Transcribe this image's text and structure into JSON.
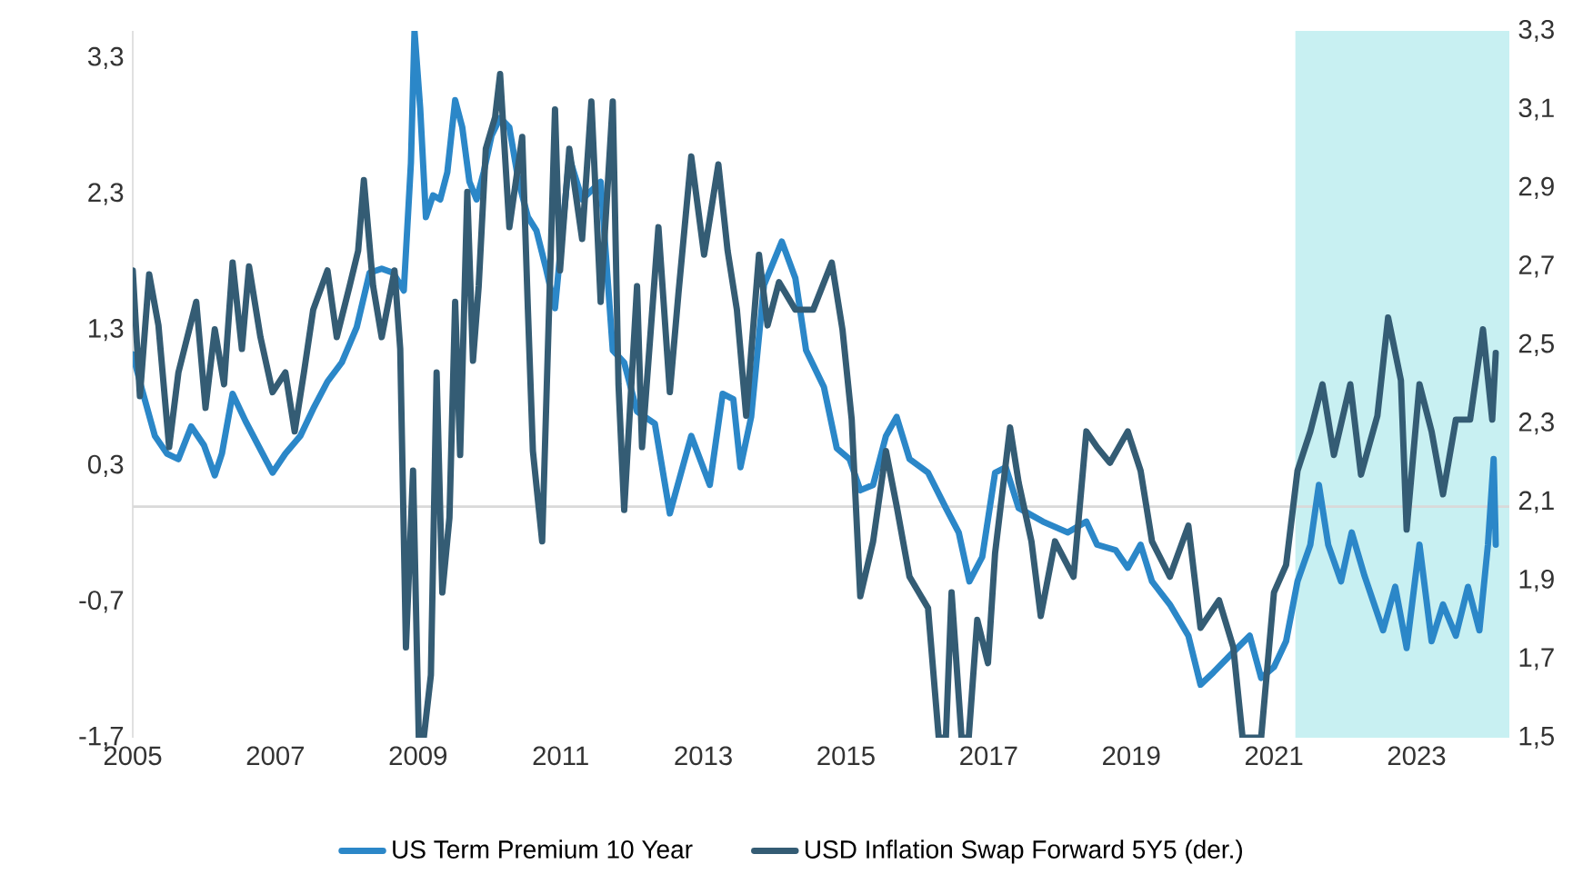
{
  "chart_data": {
    "type": "line",
    "xlim": [
      2005,
      2024.3
    ],
    "xticks": [
      2005,
      2007,
      2009,
      2011,
      2013,
      2015,
      2017,
      2019,
      2021,
      2023
    ],
    "ylim": [
      -1.7,
      3.5
    ],
    "yticks": [
      {
        "value": -1.7,
        "label": "-1,7"
      },
      {
        "value": -0.7,
        "label": "-0,7"
      },
      {
        "value": 0.3,
        "label": "0,3"
      },
      {
        "value": 1.3,
        "label": "1,3"
      },
      {
        "value": 2.3,
        "label": "2,3"
      },
      {
        "value": 3.3,
        "label": "3,3"
      }
    ],
    "y2lim": [
      1.5,
      3.3
    ],
    "y2ticks": [
      {
        "value": 1.5,
        "label": "1,5"
      },
      {
        "value": 1.7,
        "label": "1,7"
      },
      {
        "value": 1.9,
        "label": "1,9"
      },
      {
        "value": 2.1,
        "label": "2,1"
      },
      {
        "value": 2.3,
        "label": "2,3"
      },
      {
        "value": 2.5,
        "label": "2,5"
      },
      {
        "value": 2.7,
        "label": "2,7"
      },
      {
        "value": 2.9,
        "label": "2,9"
      },
      {
        "value": 3.1,
        "label": "3,1"
      },
      {
        "value": 3.3,
        "label": "3,3"
      }
    ],
    "legend": "bottom",
    "ref_lines": [
      {
        "axis": "y",
        "value": 0,
        "color": "#d9d9d9"
      }
    ],
    "bands": [
      {
        "axis": "x",
        "from": 2021.3,
        "to": 2024.3,
        "color": "#c8f0f2"
      }
    ],
    "series": [
      {
        "name": "US Term Premium 10 Year",
        "color": "#2b87c8",
        "axis": "y",
        "x": [
          2005.0,
          2005.13,
          2005.31,
          2005.48,
          2005.64,
          2005.82,
          2006.0,
          2006.15,
          2006.25,
          2006.4,
          2006.58,
          2006.76,
          2006.96,
          2007.14,
          2007.35,
          2007.53,
          2007.73,
          2007.93,
          2008.14,
          2008.32,
          2008.49,
          2008.65,
          2008.8,
          2008.9,
          2008.95,
          2009.03,
          2009.11,
          2009.21,
          2009.31,
          2009.41,
          2009.52,
          2009.62,
          2009.72,
          2009.82,
          2009.92,
          2010.03,
          2010.15,
          2010.28,
          2010.41,
          2010.54,
          2010.66,
          2010.79,
          2010.92,
          2011.12,
          2011.3,
          2011.56,
          2011.73,
          2011.89,
          2012.07,
          2012.32,
          2012.53,
          2012.83,
          2013.09,
          2013.27,
          2013.42,
          2013.52,
          2013.67,
          2013.85,
          2014.1,
          2014.29,
          2014.44,
          2014.69,
          2014.87,
          2015.05,
          2015.2,
          2015.38,
          2015.56,
          2015.71,
          2015.89,
          2016.15,
          2016.4,
          2016.58,
          2016.73,
          2016.91,
          2017.09,
          2017.24,
          2017.42,
          2017.76,
          2018.11,
          2018.37,
          2018.52,
          2018.78,
          2018.95,
          2019.13,
          2019.29,
          2019.54,
          2019.8,
          2019.97,
          2020.15,
          2020.41,
          2020.66,
          2020.82,
          2021.0,
          2021.17,
          2021.33,
          2021.51,
          2021.63,
          2021.76,
          2021.94,
          2022.09,
          2022.27,
          2022.53,
          2022.7,
          2022.86,
          2023.04,
          2023.21,
          2023.37,
          2023.55,
          2023.72,
          2023.88,
          2024.0,
          2024.08,
          2024.11
        ],
        "values": [
          1.12,
          0.86,
          0.52,
          0.39,
          0.35,
          0.59,
          0.45,
          0.23,
          0.39,
          0.83,
          0.63,
          0.45,
          0.25,
          0.39,
          0.52,
          0.72,
          0.92,
          1.06,
          1.32,
          1.72,
          1.75,
          1.72,
          1.59,
          2.53,
          3.5,
          2.93,
          2.13,
          2.29,
          2.26,
          2.46,
          2.99,
          2.79,
          2.39,
          2.26,
          2.46,
          2.73,
          2.86,
          2.79,
          2.39,
          2.13,
          2.03,
          1.76,
          1.46,
          2.57,
          2.26,
          2.39,
          1.15,
          1.06,
          0.7,
          0.61,
          -0.05,
          0.52,
          0.16,
          0.83,
          0.79,
          0.29,
          0.66,
          1.63,
          1.95,
          1.68,
          1.15,
          0.88,
          0.43,
          0.35,
          0.12,
          0.16,
          0.52,
          0.66,
          0.35,
          0.25,
          -0.01,
          -0.19,
          -0.55,
          -0.37,
          0.25,
          0.29,
          -0.01,
          -0.11,
          -0.19,
          -0.11,
          -0.28,
          -0.32,
          -0.45,
          -0.28,
          -0.55,
          -0.72,
          -0.95,
          -1.31,
          -1.22,
          -1.08,
          -0.95,
          -1.26,
          -1.18,
          -0.99,
          -0.55,
          -0.28,
          0.16,
          -0.28,
          -0.55,
          -0.19,
          -0.51,
          -0.91,
          -0.59,
          -1.04,
          -0.28,
          -0.99,
          -0.72,
          -0.95,
          -0.59,
          -0.91,
          -0.28,
          0.35,
          -0.28
        ]
      },
      {
        "name": "USD Inflation Swap Forward 5Y5 (der.)",
        "color": "#345c74",
        "axis": "y2",
        "x": [
          2005.0,
          2005.1,
          2005.23,
          2005.36,
          2005.51,
          2005.64,
          2005.89,
          2006.02,
          2006.15,
          2006.28,
          2006.4,
          2006.53,
          2006.63,
          2006.79,
          2006.96,
          2007.14,
          2007.27,
          2007.4,
          2007.53,
          2007.73,
          2007.86,
          2008.04,
          2008.16,
          2008.24,
          2008.37,
          2008.49,
          2008.67,
          2008.75,
          2008.83,
          2008.93,
          2009.01,
          2009.08,
          2009.18,
          2009.26,
          2009.34,
          2009.44,
          2009.52,
          2009.59,
          2009.69,
          2009.77,
          2009.85,
          2009.95,
          2010.08,
          2010.15,
          2010.28,
          2010.46,
          2010.54,
          2010.61,
          2010.74,
          2010.92,
          2010.99,
          2011.12,
          2011.3,
          2011.43,
          2011.56,
          2011.73,
          2011.81,
          2011.89,
          2012.07,
          2012.14,
          2012.37,
          2012.53,
          2012.65,
          2012.83,
          2013.01,
          2013.21,
          2013.34,
          2013.47,
          2013.6,
          2013.78,
          2013.9,
          2014.06,
          2014.29,
          2014.54,
          2014.8,
          2014.95,
          2015.08,
          2015.2,
          2015.38,
          2015.56,
          2015.71,
          2015.89,
          2016.15,
          2016.3,
          2016.4,
          2016.48,
          2016.62,
          2016.72,
          2016.84,
          2016.99,
          2017.09,
          2017.3,
          2017.42,
          2017.6,
          2017.73,
          2017.93,
          2018.19,
          2018.37,
          2018.52,
          2018.7,
          2018.95,
          2019.13,
          2019.29,
          2019.54,
          2019.8,
          2019.97,
          2020.23,
          2020.43,
          2020.56,
          2020.82,
          2021.0,
          2021.17,
          2021.33,
          2021.51,
          2021.68,
          2021.84,
          2022.07,
          2022.22,
          2022.45,
          2022.6,
          2022.78,
          2022.86,
          2023.04,
          2023.21,
          2023.37,
          2023.55,
          2023.75,
          2023.93,
          2024.06,
          2024.11
        ],
        "values": [
          2.69,
          2.37,
          2.68,
          2.55,
          2.24,
          2.43,
          2.61,
          2.34,
          2.54,
          2.4,
          2.71,
          2.49,
          2.7,
          2.52,
          2.38,
          2.43,
          2.28,
          2.43,
          2.59,
          2.69,
          2.52,
          2.65,
          2.74,
          2.92,
          2.65,
          2.52,
          2.69,
          2.49,
          1.73,
          2.18,
          1.5,
          1.5,
          1.66,
          2.43,
          1.87,
          2.06,
          2.61,
          2.22,
          2.89,
          2.46,
          2.65,
          3.0,
          3.08,
          3.19,
          2.8,
          3.03,
          2.59,
          2.23,
          2.0,
          3.1,
          2.69,
          3.0,
          2.77,
          3.12,
          2.61,
          3.12,
          2.4,
          2.08,
          2.65,
          2.24,
          2.8,
          2.38,
          2.63,
          2.98,
          2.73,
          2.96,
          2.74,
          2.59,
          2.32,
          2.73,
          2.55,
          2.66,
          2.59,
          2.59,
          2.71,
          2.54,
          2.31,
          1.86,
          2.0,
          2.23,
          2.09,
          1.91,
          1.83,
          1.5,
          1.5,
          1.87,
          1.5,
          1.5,
          1.8,
          1.69,
          1.97,
          2.29,
          2.15,
          2.0,
          1.81,
          2.0,
          1.91,
          2.28,
          2.24,
          2.2,
          2.28,
          2.18,
          2.0,
          1.91,
          2.04,
          1.78,
          1.85,
          1.73,
          1.5,
          1.5,
          1.87,
          1.94,
          2.18,
          2.28,
          2.4,
          2.22,
          2.4,
          2.17,
          2.32,
          2.57,
          2.41,
          2.03,
          2.4,
          2.28,
          2.12,
          2.31,
          2.31,
          2.54,
          2.31,
          2.48
        ]
      }
    ]
  }
}
